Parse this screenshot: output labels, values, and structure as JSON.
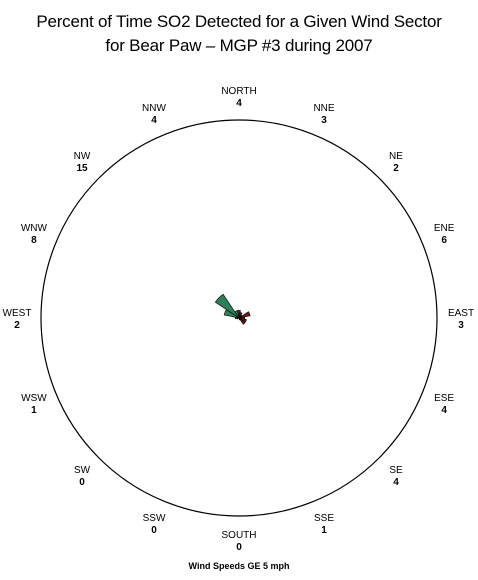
{
  "title_line1": "Percent of Time SO2 Detected for a Given Wind Sector",
  "title_line2": "for Bear Paw  –  MGP #3 during 2007",
  "footnote": "Wind Speeds GE 5 mph",
  "chart_data": {
    "type": "wind-rose",
    "title": "Percent of Time SO2 Detected for a Given Wind Sector for Bear Paw – MGP #3 during 2007",
    "note": "Wind Speeds GE 5 mph",
    "sectors": [
      {
        "name": "NORTH",
        "value": 4
      },
      {
        "name": "NNE",
        "value": 3
      },
      {
        "name": "NE",
        "value": 2
      },
      {
        "name": "ENE",
        "value": 6
      },
      {
        "name": "EAST",
        "value": 3
      },
      {
        "name": "ESE",
        "value": 4
      },
      {
        "name": "SE",
        "value": 4
      },
      {
        "name": "SSE",
        "value": 1
      },
      {
        "name": "SOUTH",
        "value": 0
      },
      {
        "name": "SSW",
        "value": 0
      },
      {
        "name": "SW",
        "value": 0
      },
      {
        "name": "WSW",
        "value": 1
      },
      {
        "name": "WEST",
        "value": 2
      },
      {
        "name": "WNW",
        "value": 8
      },
      {
        "name": "NW",
        "value": 15
      },
      {
        "name": "NNW",
        "value": 4
      }
    ],
    "colors": {
      "circle": "#000000",
      "petal_fill": "#2e7d5b",
      "petal_stroke": "#000000",
      "petal_accent": "#6a1a1a"
    }
  }
}
